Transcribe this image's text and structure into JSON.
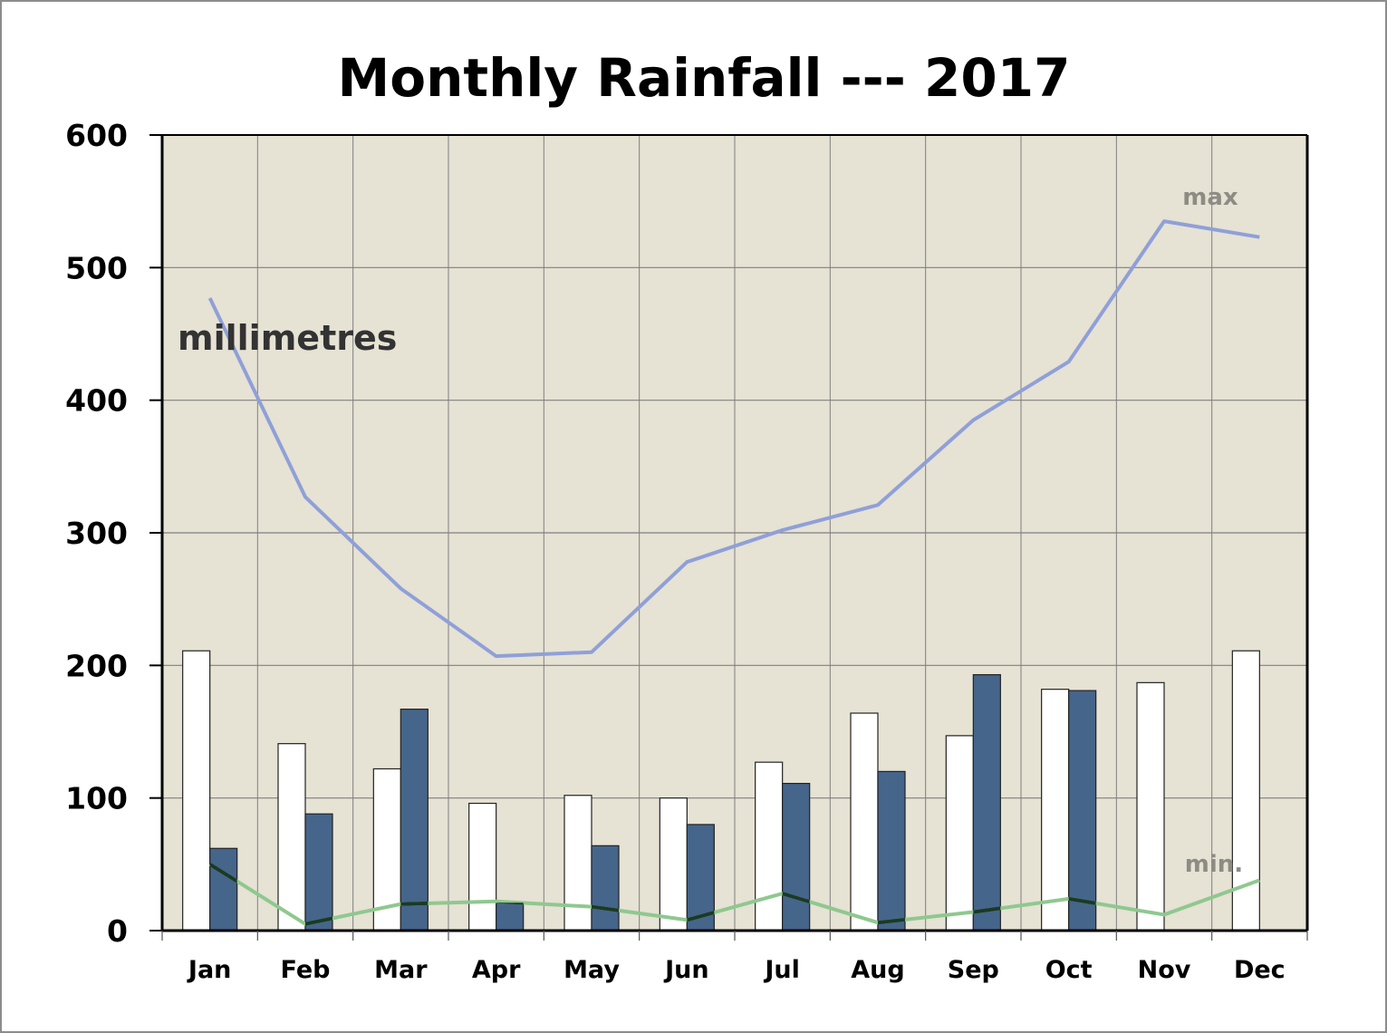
{
  "chart_data": {
    "type": "bar",
    "title": "Monthly Rainfall --- 2017",
    "unit_label": "millimetres",
    "categories": [
      "Jan",
      "Feb",
      "Mar",
      "Apr",
      "May",
      "Jun",
      "Jul",
      "Aug",
      "Sep",
      "Oct",
      "Nov",
      "Dec"
    ],
    "ylim": [
      0,
      600
    ],
    "yticks": [
      "0",
      "100",
      "200",
      "300",
      "400",
      "500",
      "600"
    ],
    "grid": true,
    "series": [
      {
        "type": "bar",
        "color": "#ffffff",
        "values": [
          211,
          141,
          122,
          96,
          102,
          100,
          127,
          164,
          147,
          182,
          187,
          211
        ]
      },
      {
        "type": "bar",
        "color": "#45658a",
        "values": [
          62,
          88,
          167,
          21,
          64,
          80,
          111,
          120,
          193,
          181,
          0,
          0
        ]
      },
      {
        "name": "max",
        "type": "line",
        "color": "#8fa0d8",
        "values": [
          477,
          327,
          258,
          207,
          210,
          278,
          302,
          321,
          385,
          429,
          535,
          523
        ]
      },
      {
        "name": "min.",
        "type": "line",
        "color": "#8fc88f",
        "values": [
          50,
          5,
          20,
          22,
          18,
          8,
          28,
          6,
          14,
          24,
          12,
          38
        ]
      }
    ],
    "colors": {
      "plot_background": "#e6e2d4",
      "gridline": "#7f7f7f",
      "min_line_overlap": "#1a3a26"
    }
  }
}
